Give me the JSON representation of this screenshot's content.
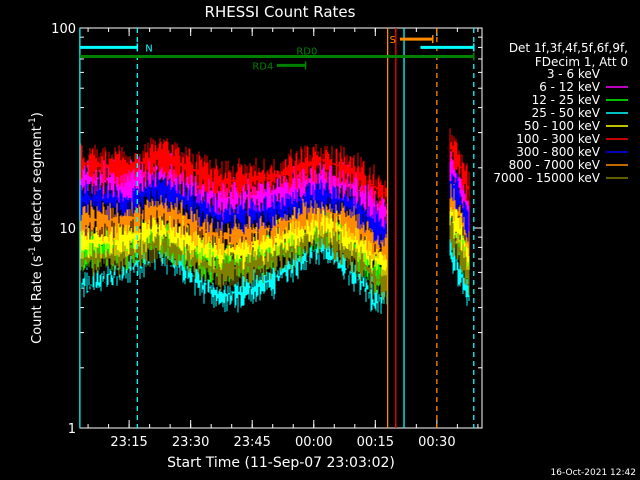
{
  "chart_data": {
    "type": "line",
    "title": "RHESSI Count Rates",
    "xlabel": "Start Time (11-Sep-07 23:03:02)",
    "ylabel_main": "Count Rate (s",
    "ylabel_sup": "-1",
    "ylabel_rest": " detector segment",
    "ylabel_sup2": "-1",
    "ylabel_end": ")",
    "y_scale": "log",
    "ylim": [
      1,
      100
    ],
    "y_ticks": [
      "1",
      "10",
      "100"
    ],
    "x_start": "23:03:02",
    "x_end": "00:41:00",
    "x_ticks": [
      {
        "label": "23:15",
        "t": "23:15"
      },
      {
        "label": "23:30",
        "t": "23:30"
      },
      {
        "label": "23:45",
        "t": "23:45"
      },
      {
        "label": "00:00",
        "t": "00:00"
      },
      {
        "label": "00:15",
        "t": "00:15"
      },
      {
        "label": "00:30",
        "t": "00:30"
      }
    ],
    "legend_position": "right",
    "legend_header": [
      "Det 1f,3f,4f,5f,6f,9f,",
      "FDecim 1, Att 0"
    ],
    "series": [
      {
        "name": "3 - 6 keV",
        "color": "#000000",
        "levels": [
          6.0,
          7.5,
          9.0,
          5.5,
          7.0,
          9.5,
          7.0,
          5.0,
          5.5
        ]
      },
      {
        "name": "6 - 12 keV",
        "color": "#ff00ff",
        "levels": [
          18.0,
          17.0,
          20.0,
          14.0,
          15.0,
          18.0,
          16.0,
          13.0,
          12.0
        ]
      },
      {
        "name": "12 - 25 keV",
        "color": "#00ff00",
        "levels": [
          7.5,
          8.0,
          9.0,
          6.5,
          7.5,
          10.0,
          8.0,
          6.0,
          6.0
        ]
      },
      {
        "name": "25 - 50 keV",
        "color": "#00ffff",
        "levels": [
          5.5,
          6.5,
          8.0,
          4.5,
          5.5,
          8.5,
          6.0,
          4.5,
          4.5
        ]
      },
      {
        "name": "50 - 100 keV",
        "color": "#ffff00",
        "levels": [
          8.5,
          9.0,
          10.0,
          7.5,
          8.5,
          11.0,
          9.0,
          7.0,
          7.0
        ]
      },
      {
        "name": "100 - 300 keV",
        "color": "#ff0000",
        "levels": [
          21.0,
          20.0,
          23.0,
          17.0,
          18.0,
          22.0,
          19.0,
          16.0,
          15.0
        ]
      },
      {
        "name": "300 - 800 keV",
        "color": "#0000ff",
        "levels": [
          14.0,
          14.0,
          16.0,
          11.5,
          12.5,
          15.0,
          13.0,
          10.5,
          10.0
        ]
      },
      {
        "name": "800 - 7000 keV",
        "color": "#ff8c00",
        "levels": [
          11.0,
          11.0,
          12.5,
          9.0,
          10.0,
          12.5,
          10.5,
          8.5,
          8.5
        ]
      },
      {
        "name": "7000 - 15000 keV",
        "color": "#808000",
        "levels": [
          7.0,
          7.5,
          8.5,
          6.0,
          7.0,
          9.5,
          7.5,
          5.5,
          5.5
        ]
      }
    ],
    "level_times": [
      "23:04",
      "23:15",
      "23:22",
      "23:37",
      "23:50",
      "00:02",
      "00:10",
      "00:15",
      "00:17"
    ],
    "gap": {
      "start": "00:18",
      "end": "00:33"
    },
    "after_gap_levels": {
      "t": [
        "00:33",
        "00:38"
      ],
      "factor_start": 1.8,
      "factor_end": 1.0
    },
    "status_bars": [
      {
        "label": "N",
        "color": "#00ffff",
        "start": "23:03",
        "end": "23:17",
        "level": 80
      },
      {
        "label": "N",
        "color": "#00ffff",
        "start": "00:26",
        "end": "00:39",
        "level": 80,
        "hide_label": true
      },
      {
        "label": "S",
        "color": "#ff8c00",
        "start": "00:21",
        "end": "00:29",
        "level": 88
      },
      {
        "label": "RD0",
        "color": "#008000",
        "start": "23:03",
        "end": "00:39",
        "level": 72
      },
      {
        "label": "RD4",
        "color": "#008000",
        "start": "23:51",
        "end": "23:58",
        "level": 65
      }
    ],
    "vlines": [
      {
        "t": "23:17",
        "color": "#00ffff",
        "style": "dash"
      },
      {
        "t": "00:18",
        "color": "#ff8c00",
        "style": "solid"
      },
      {
        "t": "00:20",
        "color": "#ff0000",
        "style": "solid"
      },
      {
        "t": "00:22",
        "color": "#00ffff",
        "style": "solid"
      },
      {
        "t": "00:30",
        "color": "#ff8c00",
        "style": "dash"
      },
      {
        "t": "00:39",
        "color": "#00ffff",
        "style": "dash"
      },
      {
        "t": "23:03",
        "color": "#00ffff",
        "style": "solid"
      }
    ]
  },
  "footer": {
    "timestamp": "16-Oct-2021 12:42"
  }
}
